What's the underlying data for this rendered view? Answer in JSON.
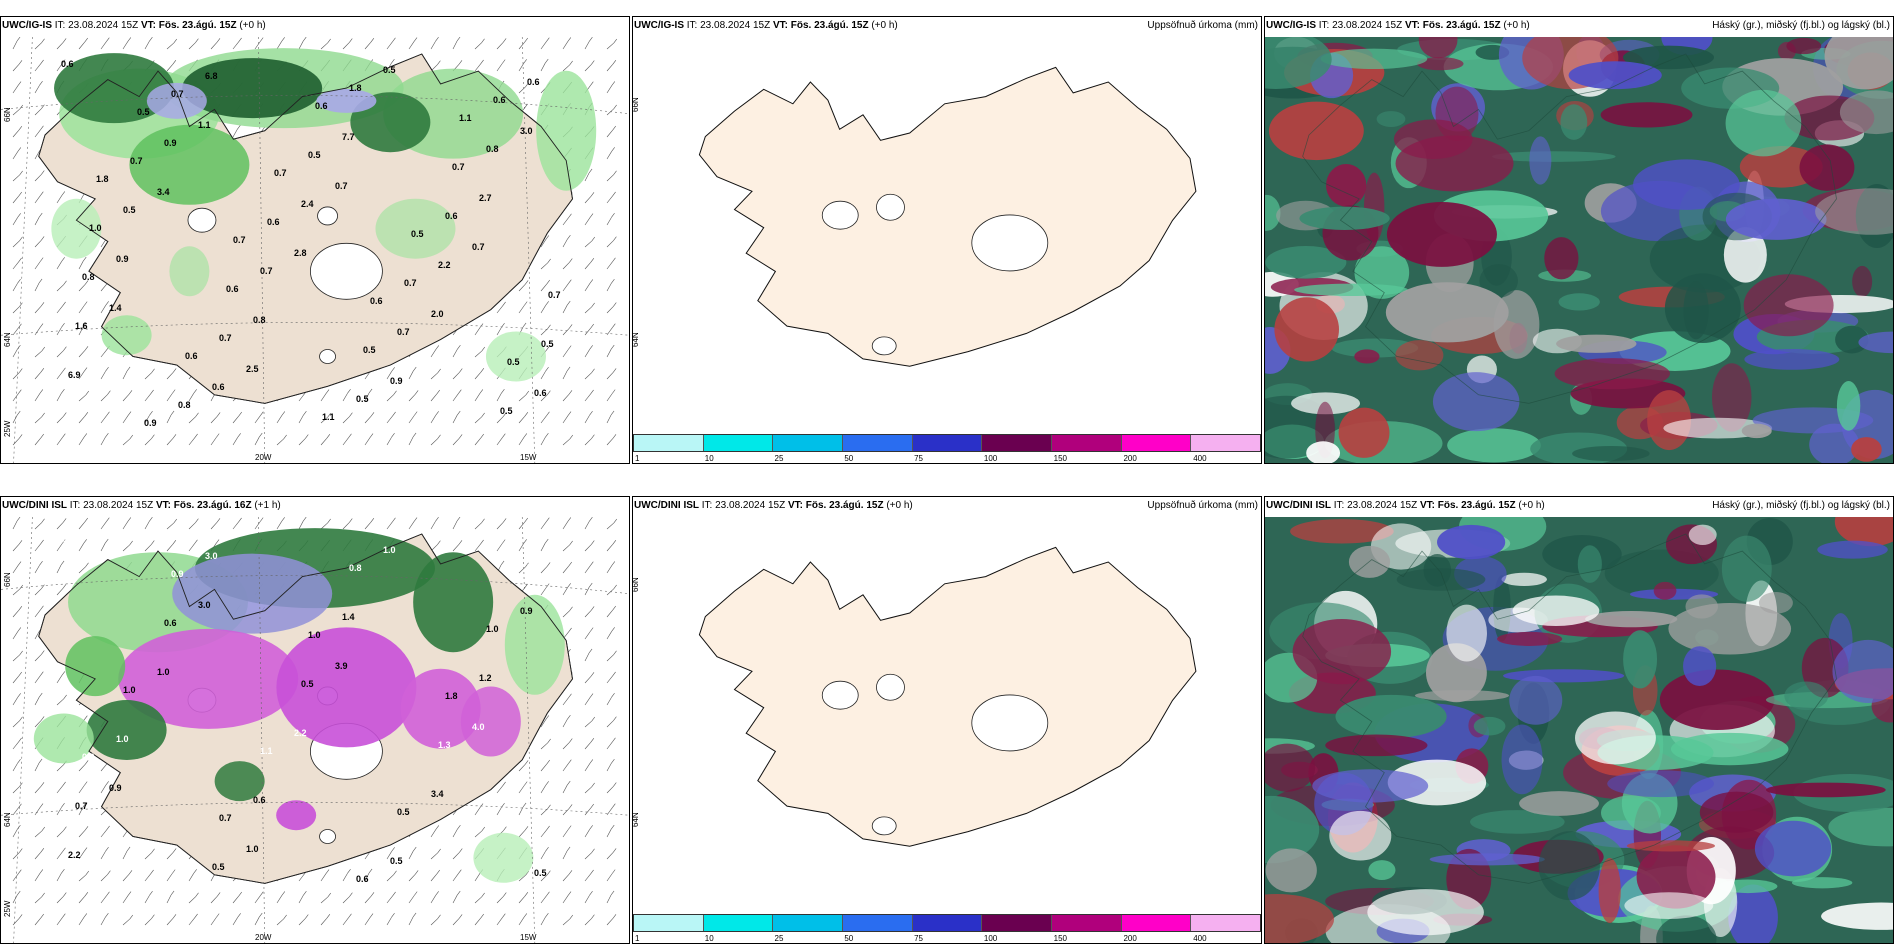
{
  "panels": {
    "p1": {
      "model": "UWC/IG-IS",
      "it_label": "IT:",
      "it": "23.08.2024 15Z",
      "vt_label": "VT:",
      "vt": "Fös. 23.ágú. 15Z",
      "lead": "(+0 h)"
    },
    "p2": {
      "model": "UWC/IG-IS",
      "it_label": "IT:",
      "it": "23.08.2024 15Z",
      "vt_label": "VT:",
      "vt": "Fös. 23.ágú. 15Z",
      "lead": "(+0 h)",
      "right_title": "Uppsöfnuð úrkoma (mm)"
    },
    "p3": {
      "model": "UWC/IG-IS",
      "it_label": "IT:",
      "it": "23.08.2024 15Z",
      "vt_label": "VT:",
      "vt": "Fös. 23.ágú. 15Z",
      "lead": "(+0 h)",
      "right_title": "Háský (gr.), miðský (fj.bl.) og lágský (bl.)"
    },
    "p4": {
      "model": "UWC/DINI ISL",
      "it_label": "IT:",
      "it": "23.08.2024 15Z",
      "vt_label": "VT:",
      "vt": "Fös. 23.ágú. 16Z",
      "lead": "(+1 h)"
    },
    "p5": {
      "model": "UWC/DINI ISL",
      "it_label": "IT:",
      "it": "23.08.2024 15Z",
      "vt_label": "VT:",
      "vt": "Fös. 23.ágú. 15Z",
      "lead": "(+0 h)",
      "right_title": "Uppsöfnuð úrkoma (mm)"
    },
    "p6": {
      "model": "UWC/DINI ISL",
      "it_label": "IT:",
      "it": "23.08.2024 15Z",
      "vt_label": "VT:",
      "vt": "Fös. 23.ágú. 15Z",
      "lead": "(+0 h)",
      "right_title": "Háský (gr.), miðský (fj.bl.) og lágský (bl.)"
    }
  },
  "axes": {
    "lon_left": "20W",
    "lon_right": "15W",
    "lat_top": "66N",
    "lat_bottom": "64N",
    "lon_edge": "25W"
  },
  "colorbar": {
    "labels": [
      "1",
      "10",
      "25",
      "50",
      "75",
      "100",
      "150",
      "200",
      "400"
    ],
    "colors": [
      "#b9f6f6",
      "#00e8e8",
      "#00bfe8",
      "#2a6df0",
      "#2a30c8",
      "#6a0050",
      "#b0007c",
      "#ff00c8",
      "#f5b0f0"
    ]
  },
  "precip_labels_top": [
    "0.6",
    "1.1",
    "0.7",
    "0.7",
    "1.4",
    "2.5",
    "0.5",
    "3.0",
    "3.4",
    "2.8",
    "2.0",
    "6.9",
    "6.8",
    "7.7",
    "2.7",
    "0.9",
    "0.8",
    "0.9",
    "0.6",
    "0.9",
    "2.4",
    "2.2",
    "1.6",
    "0.6",
    "1.8",
    "0.8",
    "0.5",
    "0.7",
    "0.7",
    "0.6",
    "0.7",
    "0.5",
    "0.6",
    "0.8",
    "0.7",
    "0.5",
    "0.6",
    "0.7",
    "0.6",
    "0.7",
    "0.5",
    "0.8",
    "0.6",
    "0.7",
    "1.0",
    "0.6",
    "0.5",
    "0.5",
    "0.5",
    "0.7",
    "0.5",
    "0.7",
    "0.6",
    "1.1",
    "1.1",
    "1.8",
    "0.7",
    "0.6",
    "0.5",
    "0.9"
  ],
  "precip_labels_bottom": [
    "2.5",
    "3.0",
    "3.9",
    "4.0",
    "0.9",
    "1.0",
    "1.0",
    "0.9",
    "1.0",
    "2.2",
    "3.4",
    "2.2",
    "3.0",
    "1.4",
    "1.2",
    "1.0",
    "0.6",
    "0.5",
    "1.1",
    "0.6",
    "0.5",
    "1.3",
    "0.7",
    "0.5",
    "0.8",
    "1.0",
    "1.0",
    "1.1",
    "0.5",
    "0.5",
    "0.9",
    "1.0",
    "1.8",
    "0.9",
    "0.7",
    "0.6"
  ]
}
